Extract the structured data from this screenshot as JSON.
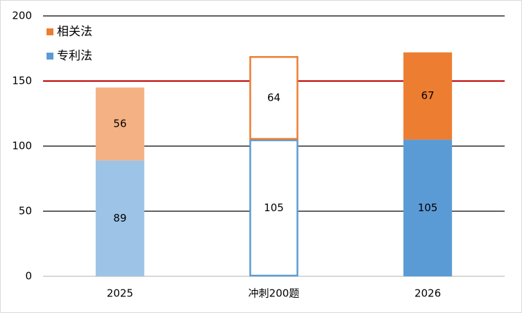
{
  "chart_data": {
    "type": "stacked_bar",
    "categories": [
      "2025",
      "冲刺200题",
      "2026"
    ],
    "series": [
      {
        "name": "专利法",
        "color": "#5b9bd5",
        "bar_colors": [
          "#9dc3e6",
          "#ffffff",
          "#5b9bd5"
        ],
        "values": [
          89,
          105,
          105
        ]
      },
      {
        "name": "相关法",
        "color": "#ed7d31",
        "bar_colors": [
          "#f4b183",
          "#ffffff",
          "#ed7d31"
        ],
        "values": [
          56,
          64,
          67
        ]
      }
    ],
    "outlined": [
      false,
      true,
      false
    ],
    "ylim": [
      0,
      200
    ],
    "yticks": [
      0,
      50,
      100,
      150,
      200
    ],
    "grid": true,
    "reference_line": {
      "value": 150,
      "color": "#c00000"
    },
    "legend": "top-left"
  }
}
